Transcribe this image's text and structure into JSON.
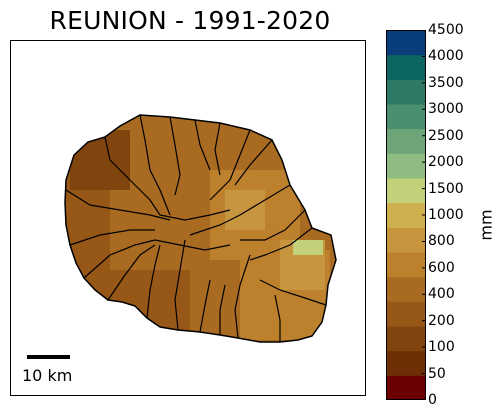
{
  "title": "REUNION - 1991-2020",
  "scale_bar": {
    "label": "10 km"
  },
  "colorbar": {
    "unit": "mm",
    "ticks": [
      "0",
      "50",
      "100",
      "200",
      "400",
      "600",
      "800",
      "1000",
      "1500",
      "2000",
      "2500",
      "3000",
      "3500",
      "4000",
      "4500"
    ],
    "colors": [
      "#6b0000",
      "#6e2f06",
      "#80440e",
      "#965717",
      "#a86b21",
      "#bd812e",
      "#c8953f",
      "#cfb04e",
      "#c3d07a",
      "#8fbc80",
      "#6da579",
      "#4a8f6e",
      "#2e7a66",
      "#0c6560",
      "#0a3d7c"
    ]
  }
}
